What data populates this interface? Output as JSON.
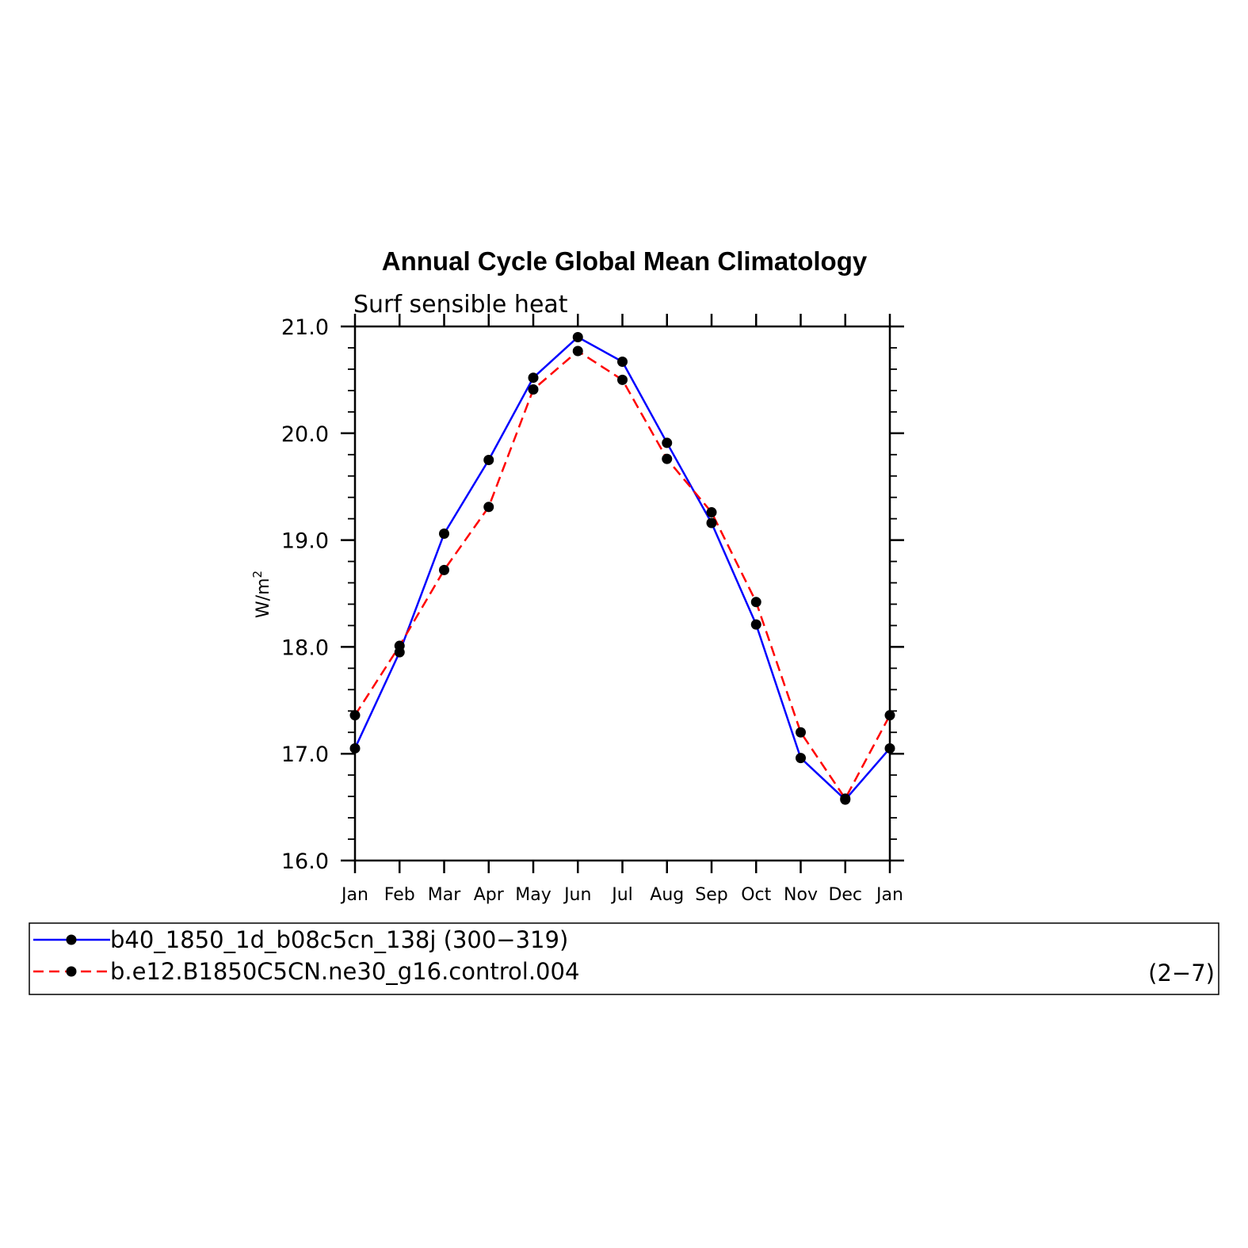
{
  "chart_data": {
    "type": "line",
    "title": "Annual Cycle Global Mean Climatology",
    "subtitle": "Surf sensible heat",
    "ylabel": "W/m",
    "ylabel_superscript": "2",
    "categories": [
      "Jan",
      "Feb",
      "Mar",
      "Apr",
      "May",
      "Jun",
      "Jul",
      "Aug",
      "Sep",
      "Oct",
      "Nov",
      "Dec",
      "Jan"
    ],
    "ylim": [
      16.0,
      21.0
    ],
    "yticks": [
      "16.0",
      "17.0",
      "18.0",
      "19.0",
      "20.0",
      "21.0"
    ],
    "grid": false,
    "legend_position": "bottom",
    "series": [
      {
        "name": "b40_1850_1d_b08c5cn_138j (300−319)",
        "color": "#0000ff",
        "dash": "solid",
        "marker": "filled-circle",
        "values": [
          17.05,
          17.95,
          19.06,
          19.75,
          20.52,
          20.9,
          20.67,
          19.91,
          19.16,
          18.21,
          16.96,
          16.57,
          17.05
        ]
      },
      {
        "name": "b.e12.B1850C5CN.ne30_g16.control.004",
        "color": "#ff0000",
        "dash": "dashed",
        "marker": "filled-circle",
        "values": [
          17.36,
          18.01,
          18.72,
          19.31,
          20.41,
          20.77,
          20.5,
          19.76,
          19.26,
          18.42,
          17.2,
          16.58,
          17.36
        ]
      }
    ],
    "legend_right_label": "(2−7)"
  }
}
